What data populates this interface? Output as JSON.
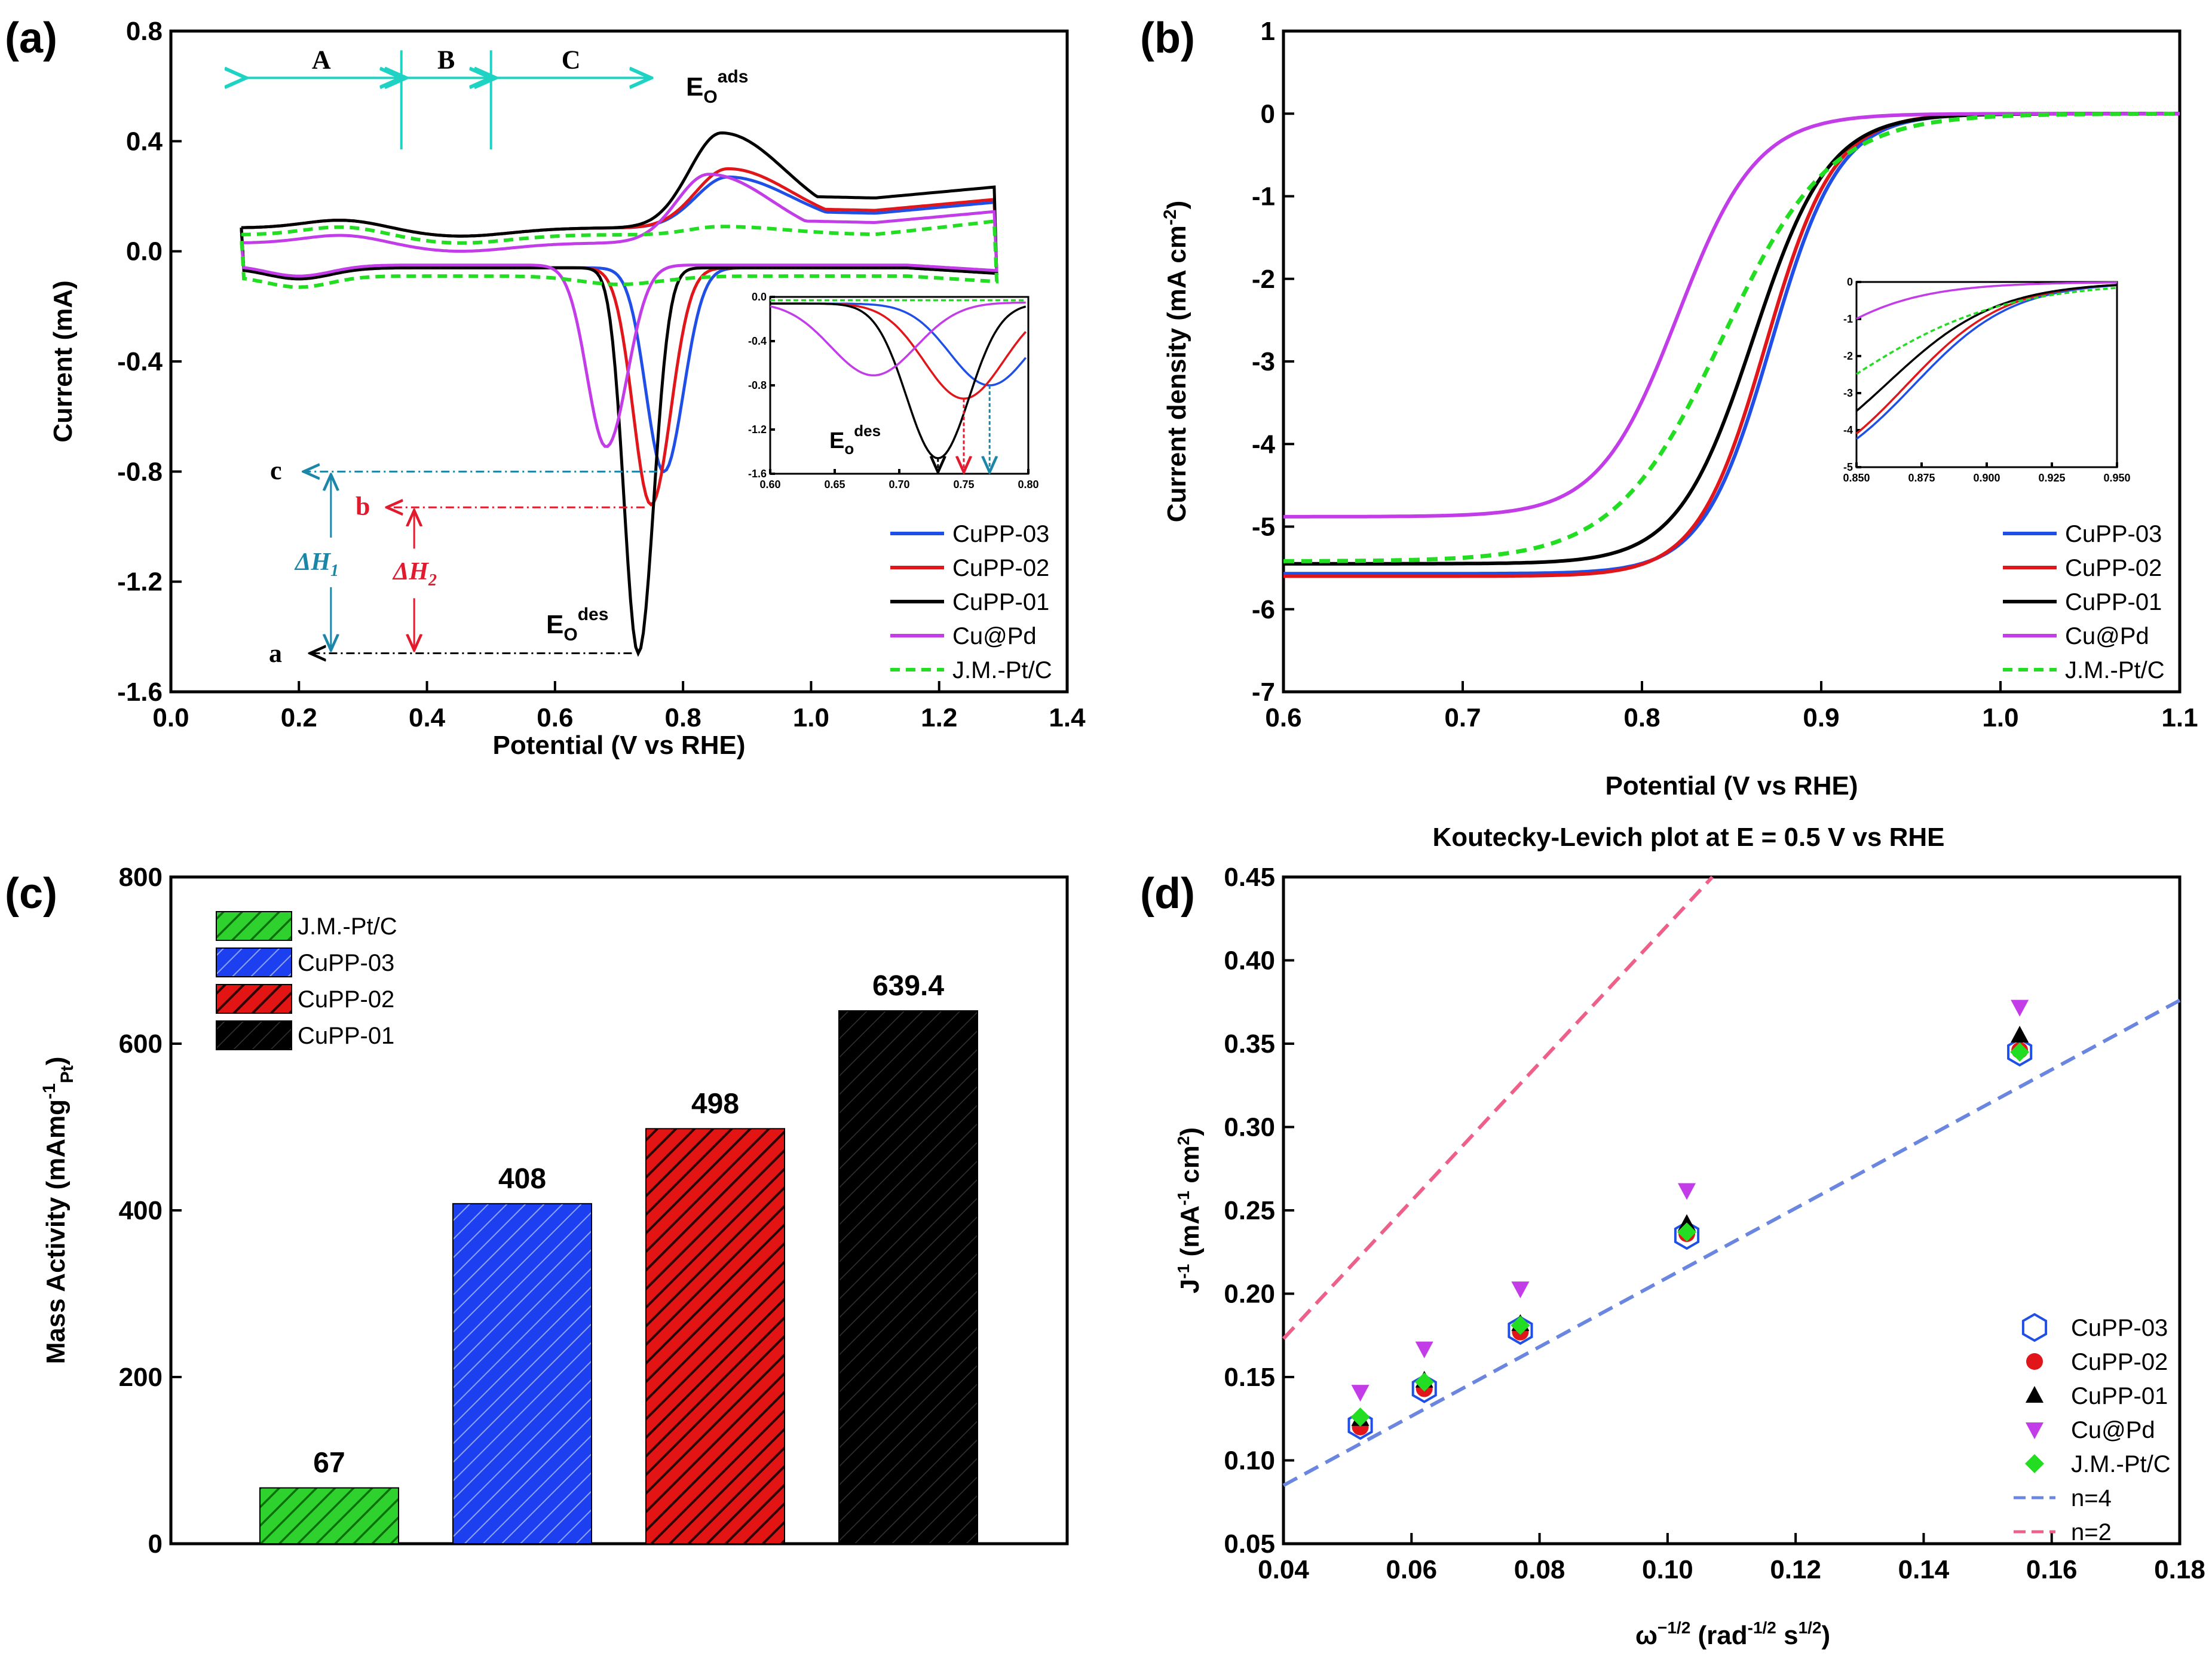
{
  "colors": {
    "cupp03": "#1f4fe6",
    "cupp02": "#e0161b",
    "cupp01": "#000000",
    "cupd": "#c23ce8",
    "jmptc": "#22dd22",
    "cyan": "#1ed3c3",
    "teal": "#1b86a8",
    "red": "#e11a2e",
    "kl_n4": "#6a86e0",
    "kl_n2": "#ee5f89"
  },
  "chart_data": [
    {
      "panel": "(a)",
      "type": "line",
      "title": "",
      "xlabel": "Potential (V vs RHE)",
      "ylabel": "Current (mA)",
      "xlim": [
        0.0,
        1.4
      ],
      "ylim": [
        -1.6,
        0.8
      ],
      "xticks": [
        "0.0",
        "0.2",
        "0.4",
        "0.6",
        "0.8",
        "1.0",
        "1.2",
        "1.4"
      ],
      "yticks": [
        "-1.6",
        "-1.2",
        "-0.8",
        "-0.4",
        "0.0",
        "0.4",
        "0.8"
      ],
      "legend": [
        "CuPP-03",
        "CuPP-02",
        "CuPP-01",
        "Cu@Pd",
        "J.M.-Pt/C"
      ],
      "legend_position": "bottom-right",
      "region_labels": [
        "A",
        "B",
        "C"
      ],
      "region_bounds_V": [
        0.11,
        0.36,
        0.5,
        0.75
      ],
      "annotations": {
        "e_ads": "E",
        "e_ads_sub": "O",
        "e_ads_sup": "ads",
        "e_des": "E",
        "e_des_sub": "O",
        "e_des_sup": "des",
        "level_a": "a",
        "level_b": "b",
        "level_c": "c",
        "dh1": "ΔH",
        "dh1_sub": "1",
        "dh2": "ΔH",
        "dh2_sub": "2"
      },
      "levels_mA": {
        "a": -1.46,
        "b": -0.93,
        "c": -0.8
      },
      "peaks": {
        "CuPP-03": {
          "des_V": 0.77,
          "des_mA": -0.8,
          "ads_V": 0.87,
          "ads_mA": 0.27
        },
        "CuPP-02": {
          "des_V": 0.75,
          "des_mA": -0.92,
          "ads_V": 0.87,
          "ads_mA": 0.3
        },
        "CuPP-01": {
          "des_V": 0.73,
          "des_mA": -1.46,
          "ads_V": 0.86,
          "ads_mA": 0.43
        },
        "Cu@Pd": {
          "des_V": 0.68,
          "des_mA": -0.71,
          "ads_V": 0.84,
          "ads_mA": 0.28
        },
        "J.M.-Pt/C": {
          "des_V": 0.7,
          "des_mA": -0.12,
          "ads_V": 0.86,
          "ads_mA": 0.09
        }
      },
      "inset": {
        "xlim": [
          0.6,
          0.8
        ],
        "ylim": [
          -1.6,
          0.0
        ],
        "xticks": [
          "0.60",
          "0.65",
          "0.70",
          "0.75",
          "0.80"
        ],
        "yticks": [
          "-1.6",
          "-1.2",
          "-0.8",
          "-0.4",
          "0.0"
        ],
        "label": "E",
        "label_sub": "o",
        "label_sup": "des"
      }
    },
    {
      "panel": "(b)",
      "type": "line",
      "title": "",
      "xlabel": "Potential (V vs RHE)",
      "ylabel": "Current density (mA cm",
      "ylabel_sup": "-2",
      "ylabel_end": ")",
      "xlim": [
        0.6,
        1.1
      ],
      "ylim": [
        -7,
        1
      ],
      "xticks": [
        "0.6",
        "0.7",
        "0.8",
        "0.9",
        "1.0",
        "1.1"
      ],
      "yticks": [
        "-7",
        "-6",
        "-5",
        "-4",
        "-3",
        "-2",
        "-1",
        "0",
        "1"
      ],
      "legend": [
        "CuPP-03",
        "CuPP-02",
        "CuPP-01",
        "Cu@Pd",
        "J.M.-Pt/C"
      ],
      "legend_position": "bottom-right",
      "series": [
        {
          "name": "CuPP-03",
          "limiting_current": -5.57,
          "half_wave_V": 0.872
        },
        {
          "name": "CuPP-02",
          "limiting_current": -5.6,
          "half_wave_V": 0.869
        },
        {
          "name": "CuPP-01",
          "limiting_current": -5.45,
          "half_wave_V": 0.862
        },
        {
          "name": "Cu@Pd",
          "limiting_current": -4.88,
          "half_wave_V": 0.82
        },
        {
          "name": "J.M.-Pt/C",
          "limiting_current": -5.42,
          "half_wave_V": 0.845
        }
      ],
      "inset": {
        "xlim": [
          0.85,
          0.95
        ],
        "ylim": [
          -5,
          0
        ],
        "xticks": [
          "0.850",
          "0.875",
          "0.900",
          "0.925",
          "0.950"
        ],
        "yticks": [
          "-5",
          "-4",
          "-3",
          "-2",
          "-1",
          "0"
        ]
      }
    },
    {
      "panel": "(c)",
      "type": "bar",
      "title": "",
      "xlabel": "",
      "ylabel": "Mass Activity (mAmg",
      "ylabel_sup": "-1",
      "ylabel_sub": "Pt",
      "ylabel_end": ")",
      "categories": [
        "J.M.-Pt/C",
        "CuPP-03",
        "CuPP-02",
        "CuPP-01"
      ],
      "values": [
        67,
        408,
        498,
        639.4
      ],
      "value_labels": [
        "67",
        "408",
        "498",
        "639.4"
      ],
      "ylim": [
        0,
        800
      ],
      "yticks": [
        "0",
        "200",
        "400",
        "600",
        "800"
      ],
      "legend": [
        "J.M.-Pt/C",
        "CuPP-03",
        "CuPP-02",
        "CuPP-01"
      ],
      "legend_position": "top-left"
    },
    {
      "panel": "(d)",
      "type": "scatter",
      "title": "Koutecky-Levich plot at E = 0.5 V vs RHE",
      "xlabel": "ω",
      "xlabel_sup": "−1/2",
      "xlabel_mid": " (rad",
      "xlabel_sup2": "-1/2",
      "xlabel_mid2": " s",
      "xlabel_sup3": "1/2",
      "xlabel_end": ")",
      "ylabel": "J",
      "ylabel_sup": "-1",
      "ylabel_mid": " (mA",
      "ylabel_sup2": "-1",
      "ylabel_end": " cm",
      "ylabel_sup3": "2",
      "ylabel_close": ")",
      "xlim": [
        0.04,
        0.18
      ],
      "ylim": [
        0.05,
        0.45
      ],
      "xticks": [
        "0.04",
        "0.06",
        "0.08",
        "0.10",
        "0.12",
        "0.14",
        "0.16",
        "0.18"
      ],
      "yticks": [
        "0.05",
        "0.10",
        "0.15",
        "0.20",
        "0.25",
        "0.30",
        "0.35",
        "0.40",
        "0.45"
      ],
      "x": [
        0.052,
        0.062,
        0.077,
        0.103,
        0.155
      ],
      "series": [
        {
          "name": "CuPP-03",
          "values": [
            0.121,
            0.143,
            0.178,
            0.235,
            0.345
          ]
        },
        {
          "name": "CuPP-02",
          "values": [
            0.12,
            0.143,
            0.177,
            0.236,
            0.346
          ]
        },
        {
          "name": "CuPP-01",
          "values": [
            0.125,
            0.148,
            0.182,
            0.242,
            0.355
          ]
        },
        {
          "name": "Cu@Pd",
          "values": [
            0.141,
            0.167,
            0.203,
            0.262,
            0.372
          ]
        },
        {
          "name": "J.M.-Pt/C",
          "values": [
            0.126,
            0.147,
            0.181,
            0.237,
            0.345
          ]
        }
      ],
      "reference_lines": [
        {
          "name": "n=4",
          "x": [
            0.04,
            0.18
          ],
          "y": [
            0.085,
            0.376
          ]
        },
        {
          "name": "n=2",
          "x": [
            0.04,
            0.107
          ],
          "y": [
            0.173,
            0.45
          ]
        }
      ],
      "legend": [
        "CuPP-03",
        "CuPP-02",
        "CuPP-01",
        "Cu@Pd",
        "J.M.-Pt/C",
        "n=4",
        "n=2"
      ],
      "legend_position": "bottom-right"
    }
  ]
}
